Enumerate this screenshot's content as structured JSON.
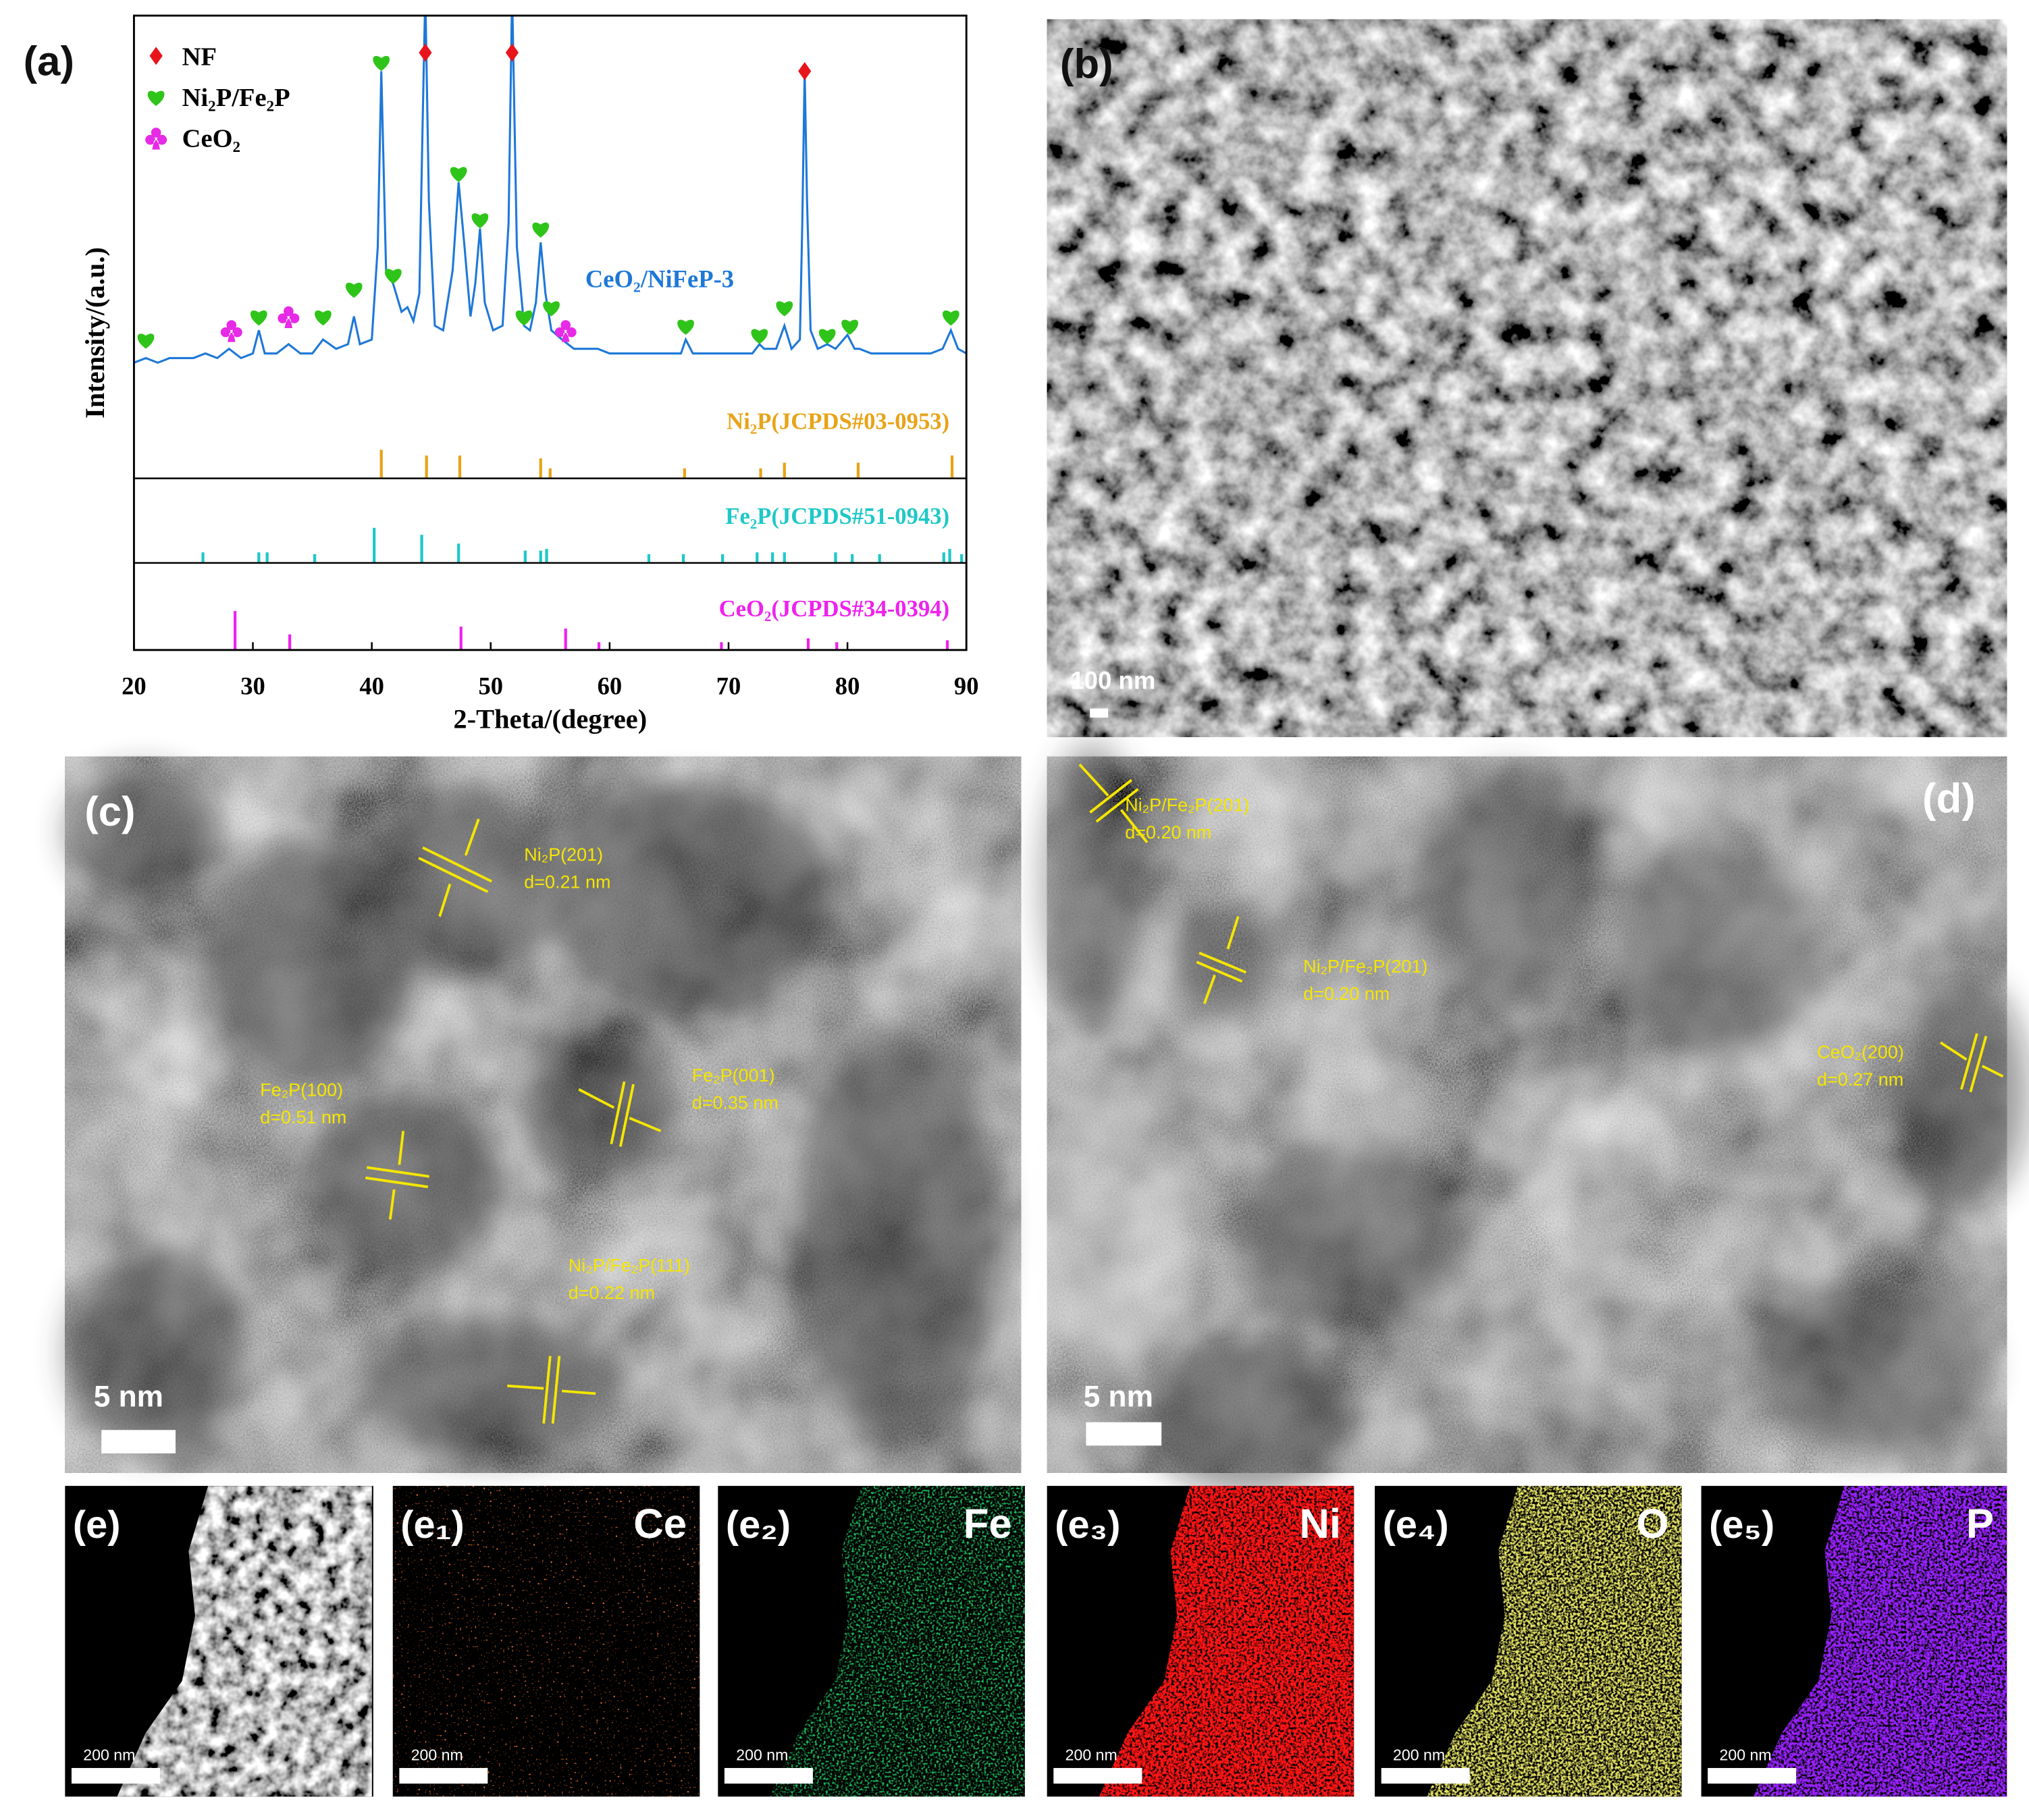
{
  "chart_data": {
    "type": "line",
    "panel_label": "(a)",
    "xlabel": "2-Theta/(degree)",
    "ylabel": "Intensity/(a.u.)",
    "xlim": [
      20,
      90
    ],
    "xticks": [
      20,
      30,
      40,
      50,
      60,
      70,
      80,
      90
    ],
    "ylim": [
      0,
      100
    ],
    "x": [
      20,
      21,
      22,
      23,
      24,
      25,
      26,
      27,
      28,
      28.5,
      29,
      30,
      30.5,
      31,
      32,
      33,
      34,
      35,
      35.9,
      37,
      38,
      38.5,
      39,
      40,
      40.5,
      40.8,
      41.2,
      41.8,
      42.5,
      43,
      43.5,
      44,
      44.3,
      44.5,
      44.8,
      45.3,
      46,
      46.8,
      47.3,
      47.8,
      48.3,
      48.7,
      49.1,
      49.5,
      50.2,
      51,
      51.5,
      51.8,
      52.2,
      52.8,
      53.3,
      53.8,
      54.2,
      54.6,
      55.1,
      56,
      57,
      58,
      59,
      60,
      61,
      62,
      63,
      64,
      65,
      66,
      66.4,
      67,
      68,
      69,
      70,
      71,
      72,
      72.6,
      73,
      74,
      74.7,
      75.3,
      76,
      76.2,
      76.4,
      76.6,
      76.9,
      77.5,
      78.3,
      79,
      80,
      80.6,
      81,
      82,
      83,
      84,
      85,
      86,
      87,
      88,
      88.7,
      89.3,
      90
    ],
    "series": [
      {
        "name": "CeO₂/NiFeP-3",
        "color": "#1e78d8",
        "values": [
          25,
          26,
          25,
          26,
          26,
          26,
          27,
          26,
          28,
          27,
          26,
          27,
          32,
          27,
          27,
          29,
          27,
          27,
          30,
          28,
          29,
          35,
          29,
          30,
          50,
          88,
          45,
          42,
          36,
          37,
          34,
          40,
          80,
          105,
          60,
          33,
          32,
          45,
          64,
          50,
          35,
          42,
          54,
          38,
          32,
          33,
          55,
          105,
          50,
          33,
          32,
          38,
          51,
          40,
          32,
          30,
          28,
          28,
          28,
          27,
          27,
          27,
          27,
          27,
          27,
          27,
          30,
          27,
          27,
          27,
          27,
          27,
          27,
          29,
          28,
          28,
          33,
          28,
          30,
          55,
          88,
          60,
          32,
          28,
          29,
          28,
          31,
          28,
          28,
          27,
          27,
          27,
          27,
          27,
          27,
          28,
          32,
          28,
          27
        ]
      }
    ],
    "peak_markers": [
      {
        "name": "NF",
        "shape": "diamond",
        "color": "#e8141c",
        "x": [
          44.5,
          51.8,
          76.4
        ],
        "y": [
          92,
          92,
          88
        ]
      },
      {
        "name": "Ni₂P/Fe₂P",
        "shape": "heart",
        "color": "#2fc41a",
        "x": [
          21,
          30.5,
          35.9,
          38.5,
          40.8,
          41.8,
          47.3,
          49.1,
          52.8,
          54.2,
          55.1,
          66.4,
          72.6,
          74.7,
          78.3,
          80.2,
          88.7
        ],
        "y": [
          30,
          35,
          35,
          41,
          90,
          44,
          66,
          56,
          35,
          54,
          37,
          33,
          31,
          37,
          31,
          33,
          35
        ]
      },
      {
        "name": "CeO₂",
        "shape": "club",
        "color": "#e62ae6",
        "x": [
          28.2,
          33,
          56.3
        ],
        "y": [
          32,
          35,
          32
        ]
      }
    ],
    "references": [
      {
        "name": "Ni₂P(JCPDS#03-0953)",
        "color": "#e8a317",
        "positions": [
          40.8,
          44.6,
          47.4,
          54.2,
          55,
          66.3,
          72.7,
          74.7,
          80.9,
          88.8
        ],
        "heights": [
          100,
          80,
          80,
          70,
          35,
          35,
          35,
          55,
          55,
          80
        ]
      },
      {
        "name": "Fe₂P(JCPDS#51-0943)",
        "color": "#1fc8c8",
        "positions": [
          25.8,
          30.5,
          31.2,
          35.2,
          40.2,
          44.2,
          47.3,
          52.9,
          54.2,
          54.7,
          63.3,
          66.2,
          69.5,
          72.4,
          73.7,
          74.7,
          79,
          80.4,
          82.7,
          88.1,
          88.6,
          89.6
        ],
        "heights": [
          30,
          30,
          30,
          25,
          100,
          80,
          55,
          35,
          35,
          40,
          25,
          25,
          25,
          30,
          30,
          30,
          30,
          25,
          25,
          30,
          40,
          25
        ]
      },
      {
        "name": "CeO₂(JCPDS#34-0394)",
        "color": "#ee22ee",
        "positions": [
          28.5,
          33.1,
          47.5,
          56.3,
          59.1,
          69.4,
          76.7,
          79.1,
          88.4
        ],
        "heights": [
          100,
          40,
          60,
          55,
          20,
          20,
          30,
          20,
          25
        ]
      }
    ]
  },
  "panels": {
    "b": {
      "label": "(b)",
      "scale_bar": "100 nm"
    },
    "c": {
      "label": "(c)",
      "scale_bar": "5 nm",
      "annotations": [
        [
          "Ni₂P(201)",
          "d=0.21 nm"
        ],
        [
          "Fe₂P(100)",
          "d=0.51 nm"
        ],
        [
          "Fe₂P(001)",
          "d=0.35 nm"
        ],
        [
          "Ni₂P/Fe₂P(111)",
          "d=0.22 nm"
        ]
      ]
    },
    "d": {
      "label": "(d)",
      "scale_bar": "5 nm",
      "annotations": [
        [
          "Ni₂P/Fe₂P(201)",
          "d=0.20 nm"
        ],
        [
          "Ni₂P/Fe₂P(201)",
          "d=0.20 nm"
        ],
        [
          "CeO₂(200)",
          "d=0.27 nm"
        ]
      ]
    },
    "e": [
      {
        "label": "(e)",
        "scale_bar": "200 nm"
      },
      {
        "label": "(e₁)",
        "element": "Ce",
        "scale_bar": "200 nm"
      },
      {
        "label": "(e₂)",
        "element": "Fe",
        "scale_bar": "200 nm"
      },
      {
        "label": "(e₃)",
        "element": "Ni",
        "scale_bar": "200 nm"
      },
      {
        "label": "(e₄)",
        "element": "O",
        "scale_bar": "200 nm"
      },
      {
        "label": "(e₅)",
        "element": "P",
        "scale_bar": "200 nm"
      }
    ]
  }
}
